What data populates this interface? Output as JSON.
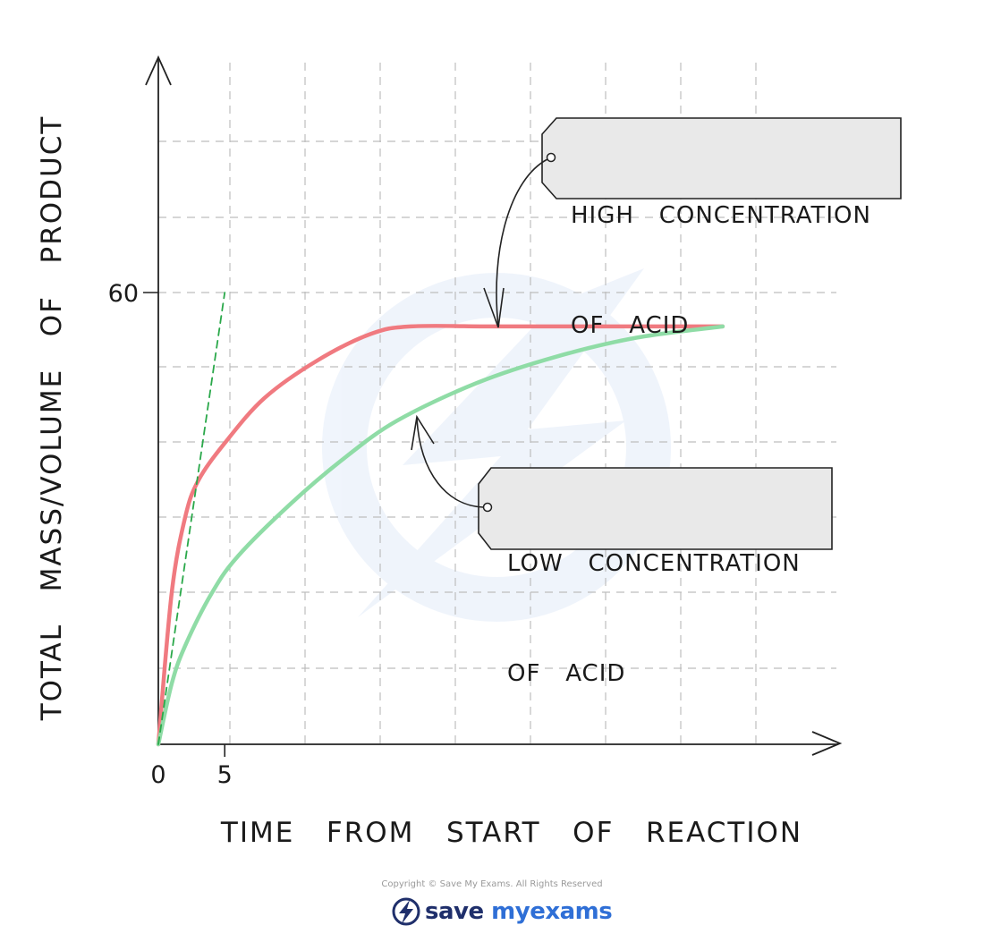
{
  "chart_data": {
    "type": "line",
    "title": "",
    "xlabel": "TIME   FROM   START   OF   REACTION",
    "ylabel": "TOTAL   MASS/VOLUME   OF   PRODUCT",
    "xlim": [
      0,
      45
    ],
    "ylim": [
      0,
      60
    ],
    "x_ticks": [
      {
        "value": 0,
        "label": "0"
      },
      {
        "value": 5,
        "label": "5"
      }
    ],
    "y_ticks": [
      {
        "value": 60,
        "label": "60"
      }
    ],
    "grid": true,
    "series": [
      {
        "name": "HIGH CONCENTRATION OF ACID",
        "color": "#f07a80",
        "x": [
          0,
          1,
          2,
          3,
          5,
          8,
          12,
          16,
          19,
          25,
          30,
          36,
          42.5
        ],
        "y": [
          0,
          20,
          30,
          35,
          40,
          46,
          51,
          54.5,
          55.5,
          55.5,
          55.5,
          55.5,
          55.5
        ]
      },
      {
        "name": "LOW CONCENTRATION OF ACID",
        "color": "#8fdca6",
        "x": [
          0,
          1,
          2,
          4,
          6,
          10,
          14,
          18,
          24,
          30,
          36,
          42.5
        ],
        "y": [
          0,
          8,
          13,
          20,
          25,
          32,
          38,
          43,
          48,
          51.5,
          54,
          55.5
        ]
      },
      {
        "name": "",
        "color": "#2aa84a",
        "style": "dashed",
        "x": [
          0,
          5
        ],
        "y": [
          0,
          60
        ]
      }
    ],
    "annotations": [
      {
        "target_series": "HIGH CONCENTRATION OF ACID",
        "lines": [
          "HIGH   CONCENTRATION",
          "OF   ACID"
        ]
      },
      {
        "target_series": "LOW CONCENTRATION OF ACID",
        "lines": [
          "LOW   CONCENTRATION",
          "OF   ACID"
        ]
      }
    ]
  },
  "footer": {
    "copyright": "Copyright © Save My Exams. All Rights Reserved",
    "logo_text_a": "save",
    "logo_text_b": "my",
    "logo_text_c": "exams",
    "logo_icon": "lightning-bolt-icon"
  }
}
